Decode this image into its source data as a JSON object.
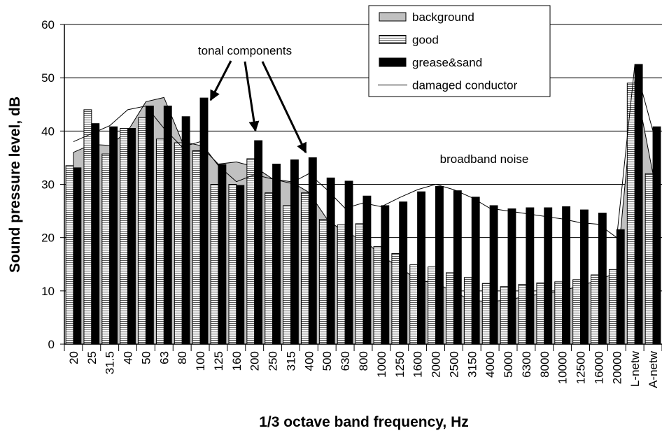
{
  "chart_data": {
    "type": "bar",
    "xlabel": "1/3 octave band frequency, Hz",
    "ylabel": "Sound pressure level, dB",
    "annotations": [
      "tonal components",
      "broadband noise"
    ],
    "categories": [
      "20",
      "25",
      "31.5",
      "40",
      "50",
      "63",
      "80",
      "100",
      "125",
      "160",
      "200",
      "250",
      "315",
      "400",
      "500",
      "630",
      "800",
      "1000",
      "1250",
      "1600",
      "2000",
      "2500",
      "3150",
      "4000",
      "5000",
      "6300",
      "8000",
      "10000",
      "12500",
      "16000",
      "20000",
      "L-netw",
      "A-netw"
    ],
    "ylim": [
      0,
      60
    ],
    "yticks": [
      0,
      10,
      20,
      30,
      40,
      50,
      60
    ],
    "grid": true,
    "legend": "top-right",
    "series": [
      {
        "name": "background",
        "type": "area",
        "color": "#c0c0c0",
        "values": [
          36,
          37.5,
          37.3,
          40,
          45.5,
          46.3,
          38,
          37.3,
          33.8,
          34.2,
          33.3,
          31,
          30.5,
          28.5,
          23.5,
          20.8,
          19.8,
          16.5,
          14.5,
          12,
          11.5,
          9.8,
          8.2,
          8,
          8.3,
          9,
          9.5,
          10,
          11,
          12,
          13.5,
          49.5,
          32
        ]
      },
      {
        "name": "good",
        "type": "bar",
        "color": "#ffffff",
        "hatch": true,
        "values": [
          33.5,
          44,
          35.7,
          40.5,
          42.5,
          38.5,
          37.8,
          36.3,
          30,
          30,
          34.8,
          28.4,
          26,
          28.4,
          23.4,
          22.4,
          22.6,
          18.3,
          17,
          14.9,
          14.5,
          13.4,
          12.5,
          11.4,
          10.8,
          11.2,
          11.5,
          11.7,
          12.1,
          13,
          14,
          49,
          32
        ]
      },
      {
        "name": "grease&sand",
        "type": "bar",
        "color": "#000000",
        "values": [
          33.1,
          41.4,
          40.8,
          40.5,
          44.7,
          44.7,
          42.7,
          46.2,
          33.7,
          29.8,
          38.2,
          33.8,
          34.6,
          35,
          31.2,
          30.6,
          27.8,
          26,
          26.7,
          28.6,
          29.6,
          28.8,
          27.6,
          26,
          25.4,
          25.6,
          25.6,
          25.8,
          25.2,
          24.6,
          21.5,
          52.5,
          40.8
        ]
      },
      {
        "name": "damaged conductor",
        "type": "line",
        "color": "#000000",
        "values": [
          38,
          39.5,
          41,
          44,
          44.7,
          40.5,
          37,
          38,
          33.5,
          30.5,
          31.8,
          31,
          30.2,
          32,
          29,
          25.5,
          26.5,
          25.8,
          27.5,
          29,
          30,
          29,
          27.5,
          25.5,
          25,
          24.5,
          24,
          23.5,
          22.8,
          22.5,
          20,
          52.5,
          40
        ]
      }
    ]
  }
}
